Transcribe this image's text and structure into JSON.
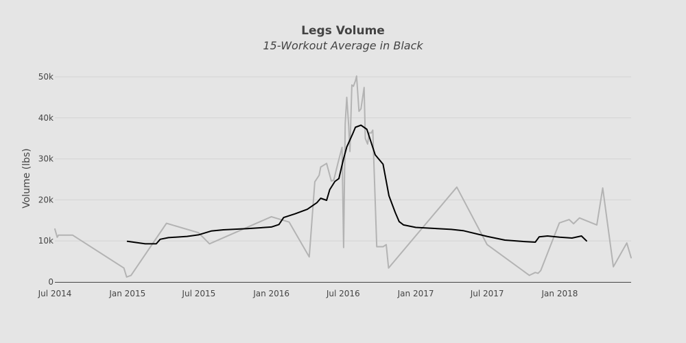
{
  "chart_data": {
    "type": "line",
    "title": "Legs Volume",
    "subtitle": "15-Workout Average in Black",
    "xlabel": "",
    "ylabel": "Volume (lbs)",
    "xlim": [
      "2014-07-01",
      "2018-07-01"
    ],
    "ylim": [
      0,
      52000
    ],
    "x_ticks": [
      {
        "date": "2014-07-01",
        "label": "Jul 2014"
      },
      {
        "date": "2015-01-01",
        "label": "Jan 2015"
      },
      {
        "date": "2015-07-01",
        "label": "Jul 2015"
      },
      {
        "date": "2016-01-01",
        "label": "Jan 2016"
      },
      {
        "date": "2016-07-01",
        "label": "Jul 2016"
      },
      {
        "date": "2017-01-01",
        "label": "Jan 2017"
      },
      {
        "date": "2017-07-01",
        "label": "Jul 2017"
      },
      {
        "date": "2018-01-01",
        "label": "Jan 2018"
      }
    ],
    "y_ticks": [
      {
        "value": 0,
        "label": "0"
      },
      {
        "value": 10000,
        "label": "10k"
      },
      {
        "value": 20000,
        "label": "20k"
      },
      {
        "value": 30000,
        "label": "30k"
      },
      {
        "value": 40000,
        "label": "40k"
      },
      {
        "value": 50000,
        "label": "50k"
      }
    ],
    "grid": true,
    "legend": "none",
    "series": [
      {
        "color": "#b3b3b3",
        "points": [
          [
            "2014-07-01",
            12900
          ],
          [
            "2014-07-07",
            10900
          ],
          [
            "2014-07-10",
            11400
          ],
          [
            "2014-08-15",
            11400
          ],
          [
            "2014-12-23",
            3400
          ],
          [
            "2014-12-30",
            1200
          ],
          [
            "2015-01-10",
            1600
          ],
          [
            "2015-04-10",
            14300
          ],
          [
            "2015-06-30",
            12000
          ],
          [
            "2015-07-28",
            9300
          ],
          [
            "2016-01-01",
            15900
          ],
          [
            "2016-02-15",
            14600
          ],
          [
            "2016-04-06",
            6100
          ],
          [
            "2016-04-20",
            24400
          ],
          [
            "2016-05-01",
            26000
          ],
          [
            "2016-05-05",
            28000
          ],
          [
            "2016-05-20",
            28900
          ],
          [
            "2016-06-01",
            24600
          ],
          [
            "2016-06-07",
            24800
          ],
          [
            "2016-06-18",
            29100
          ],
          [
            "2016-06-28",
            32800
          ],
          [
            "2016-07-02",
            8400
          ],
          [
            "2016-07-06",
            38500
          ],
          [
            "2016-07-10",
            45000
          ],
          [
            "2016-07-15",
            38000
          ],
          [
            "2016-07-18",
            31800
          ],
          [
            "2016-07-23",
            48000
          ],
          [
            "2016-07-27",
            47700
          ],
          [
            "2016-08-01",
            49000
          ],
          [
            "2016-08-04",
            50200
          ],
          [
            "2016-08-10",
            41600
          ],
          [
            "2016-08-15",
            42200
          ],
          [
            "2016-08-23",
            47400
          ],
          [
            "2016-08-26",
            35000
          ],
          [
            "2016-09-01",
            33600
          ],
          [
            "2016-09-05",
            36400
          ],
          [
            "2016-09-10",
            36300
          ],
          [
            "2016-09-14",
            37000
          ],
          [
            "2016-09-24",
            8600
          ],
          [
            "2016-10-10",
            8600
          ],
          [
            "2016-10-18",
            9100
          ],
          [
            "2016-10-24",
            3400
          ],
          [
            "2017-04-15",
            23100
          ],
          [
            "2017-07-01",
            9100
          ],
          [
            "2017-10-16",
            1600
          ],
          [
            "2017-10-31",
            2300
          ],
          [
            "2017-11-07",
            2100
          ],
          [
            "2017-11-14",
            2800
          ],
          [
            "2017-12-31",
            14400
          ],
          [
            "2018-01-25",
            15200
          ],
          [
            "2018-02-05",
            14200
          ],
          [
            "2018-02-20",
            15600
          ],
          [
            "2018-04-05",
            13900
          ],
          [
            "2018-04-20",
            22900
          ],
          [
            "2018-05-17",
            3700
          ],
          [
            "2018-06-20",
            9500
          ],
          [
            "2018-07-01",
            5900
          ]
        ]
      },
      {
        "color": "#000000",
        "points": [
          [
            "2015-01-01",
            9900
          ],
          [
            "2015-02-01",
            9500
          ],
          [
            "2015-02-15",
            9300
          ],
          [
            "2015-03-15",
            9300
          ],
          [
            "2015-03-25",
            10400
          ],
          [
            "2015-04-15",
            10800
          ],
          [
            "2015-06-01",
            11100
          ],
          [
            "2015-07-01",
            11500
          ],
          [
            "2015-08-01",
            12400
          ],
          [
            "2015-09-01",
            12700
          ],
          [
            "2015-11-01",
            13000
          ],
          [
            "2016-01-01",
            13400
          ],
          [
            "2016-01-20",
            14000
          ],
          [
            "2016-02-01",
            15700
          ],
          [
            "2016-03-01",
            16600
          ],
          [
            "2016-04-01",
            17700
          ],
          [
            "2016-04-25",
            19300
          ],
          [
            "2016-05-05",
            20400
          ],
          [
            "2016-05-20",
            19900
          ],
          [
            "2016-05-28",
            22500
          ],
          [
            "2016-06-10",
            24500
          ],
          [
            "2016-06-20",
            25200
          ],
          [
            "2016-07-01",
            29700
          ],
          [
            "2016-07-10",
            32900
          ],
          [
            "2016-07-25",
            36100
          ],
          [
            "2016-08-01",
            37700
          ],
          [
            "2016-08-15",
            38200
          ],
          [
            "2016-08-30",
            37200
          ],
          [
            "2016-09-20",
            31000
          ],
          [
            "2016-10-10",
            28700
          ],
          [
            "2016-10-25",
            21000
          ],
          [
            "2016-11-10",
            16900
          ],
          [
            "2016-11-20",
            14700
          ],
          [
            "2016-12-01",
            13900
          ],
          [
            "2017-01-01",
            13300
          ],
          [
            "2017-04-01",
            12800
          ],
          [
            "2017-05-01",
            12500
          ],
          [
            "2017-07-01",
            11100
          ],
          [
            "2017-08-15",
            10200
          ],
          [
            "2017-09-25",
            9900
          ],
          [
            "2017-10-31",
            9700
          ],
          [
            "2017-11-10",
            11000
          ],
          [
            "2017-12-01",
            11200
          ],
          [
            "2018-01-01",
            10900
          ],
          [
            "2018-02-01",
            10700
          ],
          [
            "2018-02-25",
            11200
          ],
          [
            "2018-03-10",
            10000
          ]
        ]
      }
    ]
  }
}
